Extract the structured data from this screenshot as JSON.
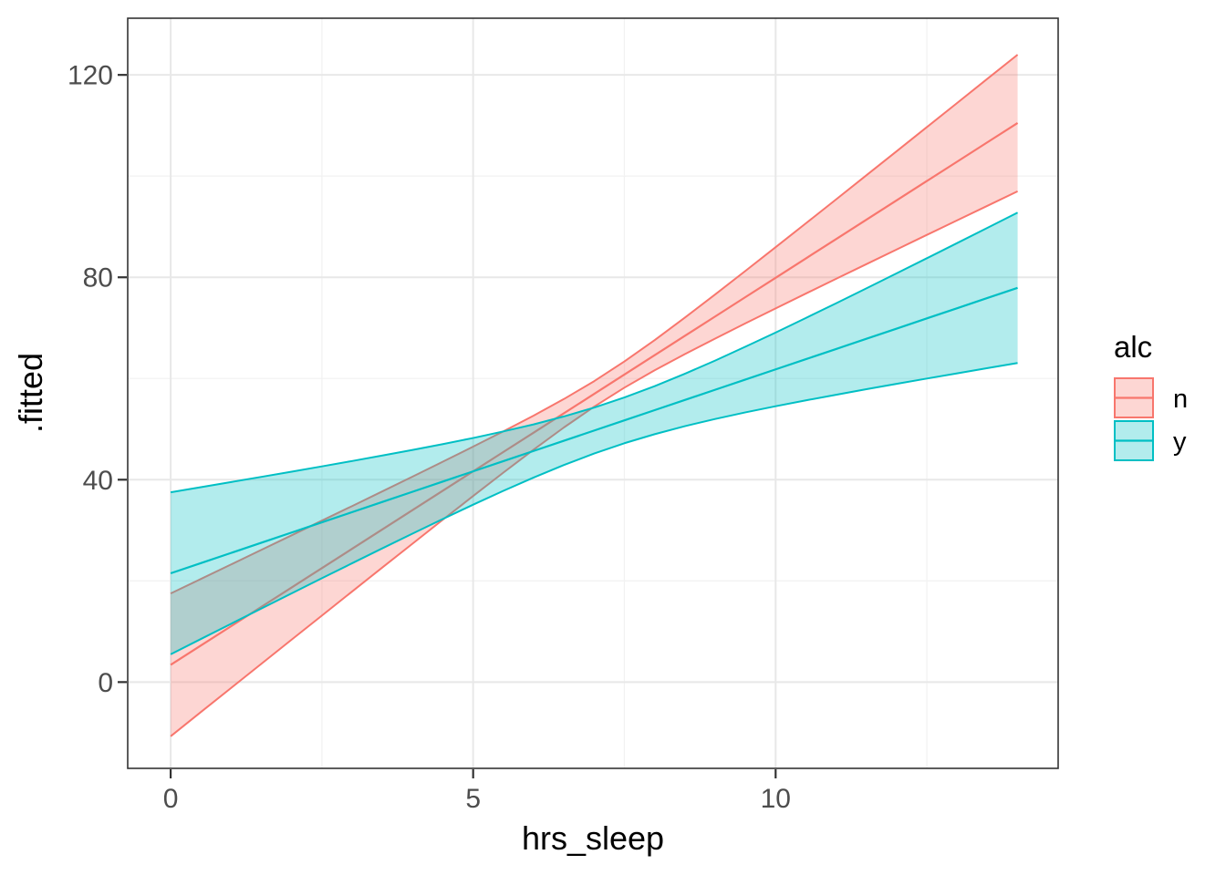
{
  "chart_data": {
    "type": "line",
    "title": "",
    "xlabel": "hrs_sleep",
    "ylabel": ".fitted",
    "grid": true,
    "legend_position": "right",
    "x_domain": [
      -0.71,
      14.67
    ],
    "y_domain": [
      -17.05,
      131.2
    ],
    "x_ticks": {
      "major": [
        0,
        5,
        10
      ],
      "minor": [
        2.5,
        7.5,
        12.5
      ],
      "labels": [
        "0",
        "5",
        "10"
      ]
    },
    "y_ticks": {
      "major": [
        0,
        40,
        80,
        120
      ],
      "minor": [
        20,
        60,
        100
      ],
      "labels": [
        "0",
        "40",
        "80",
        "120"
      ]
    },
    "x": [
      0,
      0.5,
      1,
      1.5,
      2,
      2.5,
      3,
      3.5,
      4,
      4.5,
      5,
      5.5,
      6,
      6.5,
      7,
      7.5,
      8,
      8.5,
      9,
      9.5,
      10,
      10.5,
      11,
      11.5,
      12,
      12.5,
      13,
      13.5,
      14
    ],
    "series": [
      {
        "name": "n",
        "color": "#F8766D",
        "fill": "rgba(248,118,109,0.3)",
        "fitted": [
          3.4,
          7.23,
          11.05,
          14.88,
          18.7,
          22.53,
          26.35,
          30.18,
          34,
          37.83,
          41.65,
          45.48,
          49.3,
          53.13,
          56.95,
          60.78,
          64.6,
          68.43,
          72.25,
          76.08,
          79.9,
          83.73,
          87.55,
          91.38,
          95.2,
          99.03,
          102.85,
          106.68,
          110.5
        ],
        "upper": [
          17.51,
          20.38,
          23.25,
          26.14,
          29.01,
          31.91,
          34.79,
          37.7,
          40.62,
          43.56,
          46.53,
          49.56,
          52.66,
          55.94,
          59.47,
          63.37,
          67.58,
          72.04,
          76.61,
          81.26,
          85.95,
          90.67,
          95.4,
          100.16,
          104.91,
          109.68,
          114.45,
          119.23,
          124
        ],
        "lower": [
          -10.71,
          -5.92,
          -1.15,
          3.62,
          8.39,
          13.15,
          17.91,
          22.66,
          27.38,
          32.1,
          36.77,
          41.4,
          45.94,
          50.32,
          54.43,
          58.19,
          61.62,
          64.82,
          67.89,
          70.9,
          73.85,
          76.79,
          79.7,
          82.6,
          85.49,
          88.38,
          91.25,
          94.13,
          97
        ]
      },
      {
        "name": "y",
        "color": "#00BFC4",
        "fill": "rgba(0,191,196,0.3)",
        "fitted": [
          21.5,
          23.52,
          25.53,
          27.55,
          29.56,
          31.58,
          33.59,
          35.61,
          37.62,
          39.64,
          41.65,
          43.67,
          45.68,
          47.7,
          49.71,
          51.73,
          53.74,
          55.76,
          57.77,
          59.79,
          61.8,
          63.82,
          65.83,
          67.85,
          69.86,
          71.88,
          73.89,
          75.91,
          77.92
        ],
        "upper": [
          37.51,
          38.52,
          39.53,
          40.56,
          41.58,
          42.63,
          43.69,
          44.78,
          45.88,
          47.04,
          48.24,
          49.54,
          50.93,
          52.5,
          54.25,
          56.25,
          58.49,
          60.94,
          63.54,
          66.28,
          69.08,
          71.96,
          74.87,
          77.82,
          80.78,
          83.77,
          86.76,
          89.77,
          92.78
        ],
        "lower": [
          5.49,
          8.52,
          11.53,
          14.54,
          17.54,
          20.53,
          23.49,
          26.44,
          29.36,
          32.24,
          35.06,
          37.8,
          40.43,
          42.9,
          45.17,
          47.21,
          48.99,
          50.58,
          52,
          53.3,
          54.52,
          55.68,
          56.79,
          57.88,
          58.94,
          59.99,
          61.02,
          62.05,
          63.06
        ]
      }
    ]
  },
  "legend": {
    "title": "alc",
    "entries": [
      {
        "label": "n"
      },
      {
        "label": "y"
      }
    ]
  },
  "colors": {
    "background": "#ffffff",
    "panel_background": "#ffffff",
    "panel_border": "#333333",
    "grid_major": "#E8E8E8",
    "grid_minor": "#F2F2F2",
    "tick_mark": "#333333",
    "tick_label": "#4d4d4d",
    "series_n_line": "#F8766D",
    "series_y_line": "#00BFC4"
  }
}
